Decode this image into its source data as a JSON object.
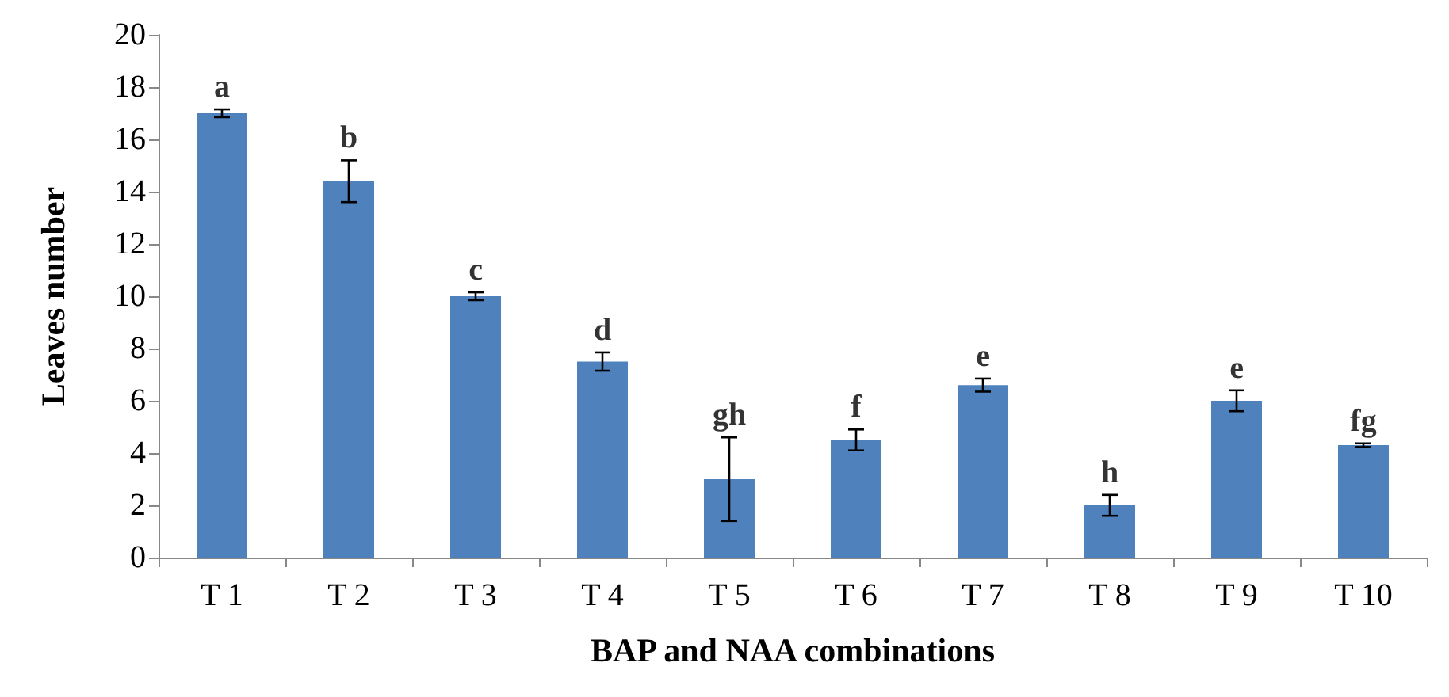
{
  "chart_data": {
    "type": "bar",
    "xlabel": "BAP and NAA combinations",
    "ylabel": "Leaves number",
    "categories": [
      "T 1",
      "T 2",
      "T 3",
      "T 4",
      "T 5",
      "T 6",
      "T 7",
      "T 8",
      "T 9",
      "T 10"
    ],
    "values": [
      17,
      14.4,
      10,
      7.5,
      3,
      4.5,
      6.6,
      2,
      6,
      4.3
    ],
    "errors": [
      0.15,
      0.8,
      0.15,
      0.35,
      1.6,
      0.4,
      0.25,
      0.4,
      0.4,
      0.07
    ],
    "color": "#4f81bd",
    "ylim": [
      0,
      20
    ],
    "yticks": [
      0,
      2,
      4,
      6,
      8,
      10,
      12,
      14,
      16,
      18,
      20
    ],
    "grid": false,
    "annotations": [
      {
        "text": "a",
        "x": "T 1",
        "y": 17.15
      },
      {
        "text": "b",
        "x": "T 2",
        "y": 15.2
      },
      {
        "text": "c",
        "x": "T 3",
        "y": 10.15
      },
      {
        "text": "d",
        "x": "T 4",
        "y": 7.85
      },
      {
        "text": "gh",
        "x": "T 5",
        "y": 4.6
      },
      {
        "text": "f",
        "x": "T 6",
        "y": 4.9
      },
      {
        "text": "e",
        "x": "T 7",
        "y": 6.85
      },
      {
        "text": "h",
        "x": "T 8",
        "y": 2.4
      },
      {
        "text": "e",
        "x": "T 9",
        "y": 6.4
      },
      {
        "text": "fg",
        "x": "T 10",
        "y": 4.37
      }
    ]
  }
}
